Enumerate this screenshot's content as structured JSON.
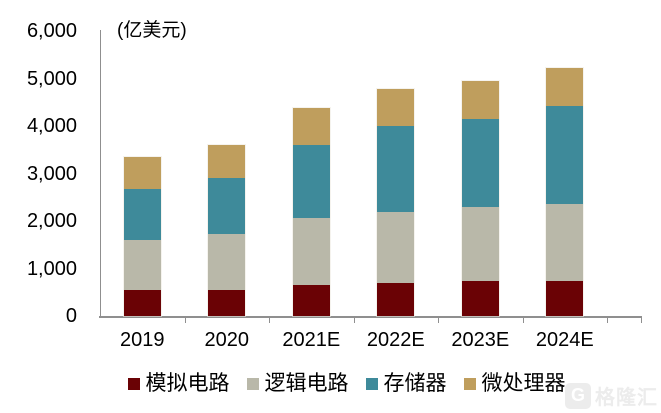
{
  "chart_data": {
    "type": "bar",
    "stacked": true,
    "unit_label": "(亿美元)",
    "categories": [
      "2019",
      "2020",
      "2021E",
      "2022E",
      "2023E",
      "2024E"
    ],
    "series": [
      {
        "key": "analog-circuit",
        "name": "模拟电路",
        "color": "#6a0205",
        "values": [
          540,
          555,
          650,
          700,
          735,
          740
        ]
      },
      {
        "key": "logic-circuit",
        "name": "逻辑电路",
        "color": "#b9b8a9",
        "values": [
          1065,
          1180,
          1405,
          1490,
          1565,
          1620
        ]
      },
      {
        "key": "memory",
        "name": "存储器",
        "color": "#3e8a9a",
        "values": [
          1075,
          1175,
          1555,
          1805,
          1855,
          2060
        ]
      },
      {
        "key": "microprocessor",
        "name": "微处理器",
        "color": "#bf9e5d",
        "values": [
          670,
          695,
          760,
          780,
          795,
          805
        ]
      }
    ],
    "totals": [
      3350,
      3605,
      4370,
      4775,
      4950,
      5225
    ],
    "ylim": [
      0,
      6000
    ],
    "ytick_step": 1000,
    "yaxis_tick_labels": [
      "0",
      "1,000",
      "2,000",
      "3,000",
      "4,000",
      "5,000",
      "6,000"
    ],
    "grid": false,
    "legend_position": "bottom",
    "axis_color": "#8f8f8f",
    "text_color": "#000000"
  },
  "watermark": {
    "logo_letter": "G",
    "text": "格隆汇",
    "color": "#ececec"
  }
}
